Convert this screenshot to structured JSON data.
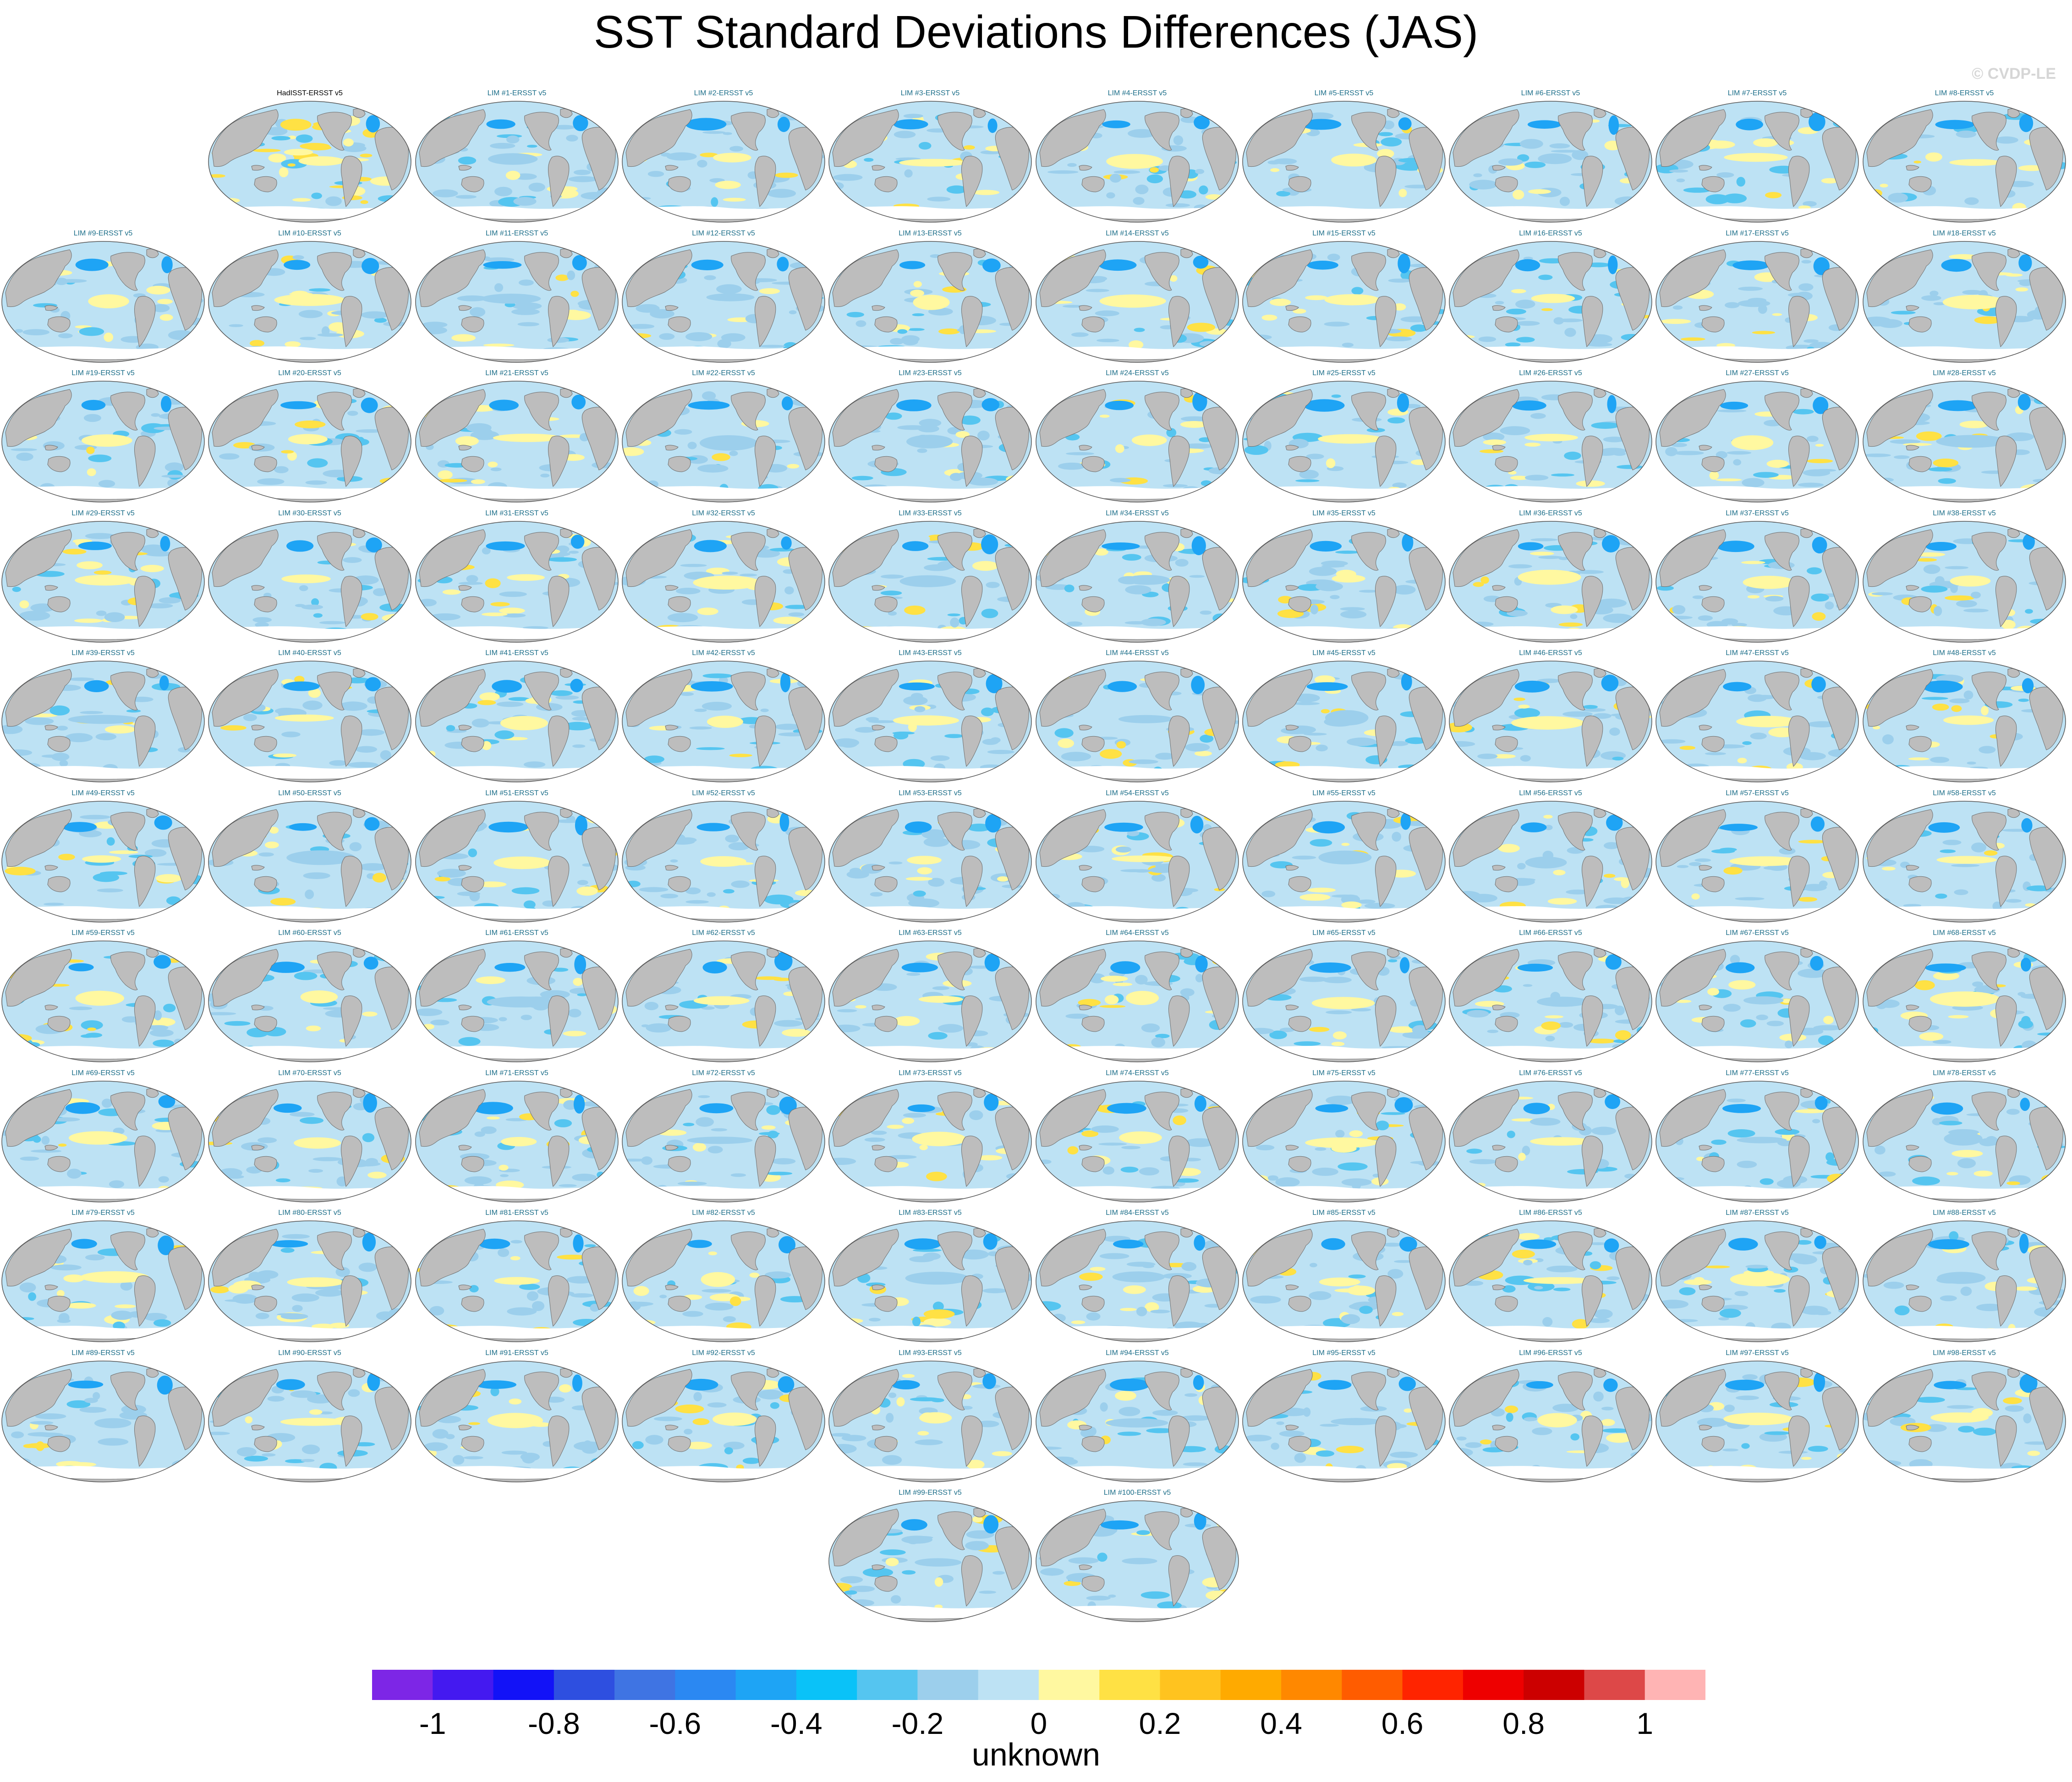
{
  "figure": {
    "title": "SST Standard Deviations Differences (JAS)",
    "credit": "© CVDP-LE"
  },
  "panels": [
    {
      "label": "HadISST-ERSST v5",
      "observational": true
    },
    {
      "label": "LIM #1-ERSST v5"
    },
    {
      "label": "LIM #2-ERSST v5"
    },
    {
      "label": "LIM #3-ERSST v5"
    },
    {
      "label": "LIM #4-ERSST v5"
    },
    {
      "label": "LIM #5-ERSST v5"
    },
    {
      "label": "LIM #6-ERSST v5"
    },
    {
      "label": "LIM #7-ERSST v5"
    },
    {
      "label": "LIM #8-ERSST v5"
    },
    {
      "label": "LIM #9-ERSST v5"
    },
    {
      "label": "LIM #10-ERSST v5"
    },
    {
      "label": "LIM #11-ERSST v5"
    },
    {
      "label": "LIM #12-ERSST v5"
    },
    {
      "label": "LIM #13-ERSST v5"
    },
    {
      "label": "LIM #14-ERSST v5"
    },
    {
      "label": "LIM #15-ERSST v5"
    },
    {
      "label": "LIM #16-ERSST v5"
    },
    {
      "label": "LIM #17-ERSST v5"
    },
    {
      "label": "LIM #18-ERSST v5"
    },
    {
      "label": "LIM #19-ERSST v5"
    },
    {
      "label": "LIM #20-ERSST v5"
    },
    {
      "label": "LIM #21-ERSST v5"
    },
    {
      "label": "LIM #22-ERSST v5"
    },
    {
      "label": "LIM #23-ERSST v5"
    },
    {
      "label": "LIM #24-ERSST v5"
    },
    {
      "label": "LIM #25-ERSST v5"
    },
    {
      "label": "LIM #26-ERSST v5"
    },
    {
      "label": "LIM #27-ERSST v5"
    },
    {
      "label": "LIM #28-ERSST v5"
    },
    {
      "label": "LIM #29-ERSST v5"
    },
    {
      "label": "LIM #30-ERSST v5"
    },
    {
      "label": "LIM #31-ERSST v5"
    },
    {
      "label": "LIM #32-ERSST v5"
    },
    {
      "label": "LIM #33-ERSST v5"
    },
    {
      "label": "LIM #34-ERSST v5"
    },
    {
      "label": "LIM #35-ERSST v5"
    },
    {
      "label": "LIM #36-ERSST v5"
    },
    {
      "label": "LIM #37-ERSST v5"
    },
    {
      "label": "LIM #38-ERSST v5"
    },
    {
      "label": "LIM #39-ERSST v5"
    },
    {
      "label": "LIM #40-ERSST v5"
    },
    {
      "label": "LIM #41-ERSST v5"
    },
    {
      "label": "LIM #42-ERSST v5"
    },
    {
      "label": "LIM #43-ERSST v5"
    },
    {
      "label": "LIM #44-ERSST v5"
    },
    {
      "label": "LIM #45-ERSST v5"
    },
    {
      "label": "LIM #46-ERSST v5"
    },
    {
      "label": "LIM #47-ERSST v5"
    },
    {
      "label": "LIM #48-ERSST v5"
    },
    {
      "label": "LIM #49-ERSST v5"
    },
    {
      "label": "LIM #50-ERSST v5"
    },
    {
      "label": "LIM #51-ERSST v5"
    },
    {
      "label": "LIM #52-ERSST v5"
    },
    {
      "label": "LIM #53-ERSST v5"
    },
    {
      "label": "LIM #54-ERSST v5"
    },
    {
      "label": "LIM #55-ERSST v5"
    },
    {
      "label": "LIM #56-ERSST v5"
    },
    {
      "label": "LIM #57-ERSST v5"
    },
    {
      "label": "LIM #58-ERSST v5"
    },
    {
      "label": "LIM #59-ERSST v5"
    },
    {
      "label": "LIM #60-ERSST v5"
    },
    {
      "label": "LIM #61-ERSST v5"
    },
    {
      "label": "LIM #62-ERSST v5"
    },
    {
      "label": "LIM #63-ERSST v5"
    },
    {
      "label": "LIM #64-ERSST v5"
    },
    {
      "label": "LIM #65-ERSST v5"
    },
    {
      "label": "LIM #66-ERSST v5"
    },
    {
      "label": "LIM #67-ERSST v5"
    },
    {
      "label": "LIM #68-ERSST v5"
    },
    {
      "label": "LIM #69-ERSST v5"
    },
    {
      "label": "LIM #70-ERSST v5"
    },
    {
      "label": "LIM #71-ERSST v5"
    },
    {
      "label": "LIM #72-ERSST v5"
    },
    {
      "label": "LIM #73-ERSST v5"
    },
    {
      "label": "LIM #74-ERSST v5"
    },
    {
      "label": "LIM #75-ERSST v5"
    },
    {
      "label": "LIM #76-ERSST v5"
    },
    {
      "label": "LIM #77-ERSST v5"
    },
    {
      "label": "LIM #78-ERSST v5"
    },
    {
      "label": "LIM #79-ERSST v5"
    },
    {
      "label": "LIM #80-ERSST v5"
    },
    {
      "label": "LIM #81-ERSST v5"
    },
    {
      "label": "LIM #82-ERSST v5"
    },
    {
      "label": "LIM #83-ERSST v5"
    },
    {
      "label": "LIM #84-ERSST v5"
    },
    {
      "label": "LIM #85-ERSST v5"
    },
    {
      "label": "LIM #86-ERSST v5"
    },
    {
      "label": "LIM #87-ERSST v5"
    },
    {
      "label": "LIM #88-ERSST v5"
    },
    {
      "label": "LIM #89-ERSST v5"
    },
    {
      "label": "LIM #90-ERSST v5"
    },
    {
      "label": "LIM #91-ERSST v5"
    },
    {
      "label": "LIM #92-ERSST v5"
    },
    {
      "label": "LIM #93-ERSST v5"
    },
    {
      "label": "LIM #94-ERSST v5"
    },
    {
      "label": "LIM #95-ERSST v5"
    },
    {
      "label": "LIM #96-ERSST v5"
    },
    {
      "label": "LIM #97-ERSST v5"
    },
    {
      "label": "LIM #98-ERSST v5"
    },
    {
      "label": "LIM #99-ERSST v5"
    },
    {
      "label": "LIM #100-ERSST v5"
    }
  ],
  "colorbar": {
    "label": "unknown",
    "ticks": [
      "-1",
      "-0.8",
      "-0.6",
      "-0.4",
      "-0.2",
      "0",
      "0.2",
      "0.4",
      "0.6",
      "0.8",
      "1"
    ],
    "range": [
      -1.1,
      1.1
    ],
    "colors": [
      "#7d26e6",
      "#4419f0",
      "#1212f7",
      "#2e4fe0",
      "#3f74e3",
      "#2b88f2",
      "#1ea4f5",
      "#0ac2f8",
      "#55c5f0",
      "#9ccfec",
      "#bde2f4",
      "#fff8a0",
      "#ffe144",
      "#ffc31f",
      "#ffaa00",
      "#ff8800",
      "#ff5c00",
      "#ff2400",
      "#ee0000",
      "#cc0000",
      "#dd4848",
      "#ffb4b4"
    ]
  },
  "map_colors": {
    "land": "#bdbdbd",
    "ocean_base": "#bde2f4",
    "ocean_mid": "#9ccfec",
    "positive": "#fff8a0",
    "positive_strong": "#ffe144",
    "negative": "#55c5f0",
    "negative_strong": "#1ea4f5",
    "ice_edge": "#ffffff",
    "coast": "#6e6e6e"
  }
}
